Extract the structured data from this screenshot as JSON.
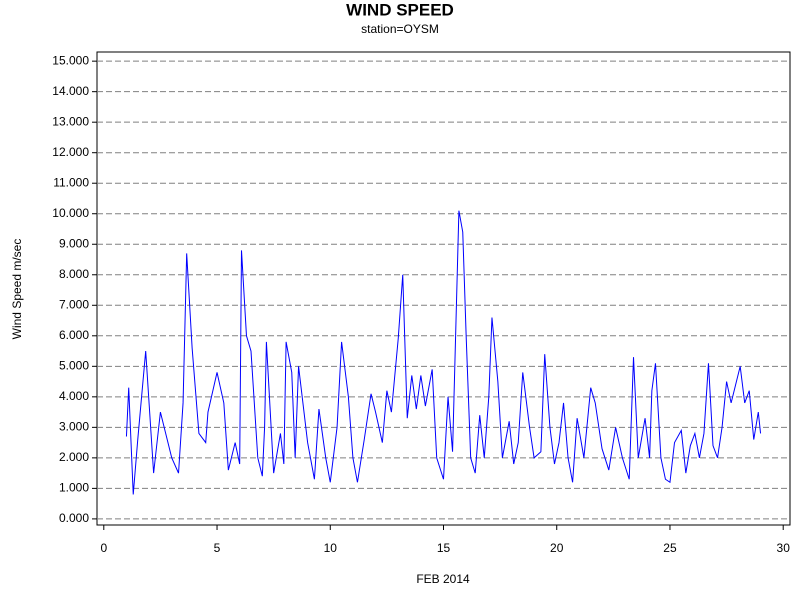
{
  "chart_data": {
    "type": "line",
    "title": "WIND SPEED",
    "subtitle": "station=OYSM",
    "x_label": "FEB 2014",
    "y_label": "Wind Speed m/sec",
    "color": "#0000ff",
    "grid": true,
    "xlim": [
      -0.3,
      30.3
    ],
    "ylim": [
      -0.2,
      15.3
    ],
    "xticks": [
      0,
      5,
      10,
      15,
      20,
      25,
      30
    ],
    "yticks": [
      {
        "value": 0,
        "label": "0.000"
      },
      {
        "value": 1,
        "label": "1.000"
      },
      {
        "value": 2,
        "label": "2.000"
      },
      {
        "value": 3,
        "label": "3.000"
      },
      {
        "value": 4,
        "label": "4.000"
      },
      {
        "value": 5,
        "label": "5.000"
      },
      {
        "value": 6,
        "label": "6.000"
      },
      {
        "value": 7,
        "label": "7.000"
      },
      {
        "value": 8,
        "label": "8.000"
      },
      {
        "value": 9,
        "label": "9.000"
      },
      {
        "value": 10,
        "label": "10.000"
      },
      {
        "value": 11,
        "label": "11.000"
      },
      {
        "value": 12,
        "label": "12.000"
      },
      {
        "value": 13,
        "label": "13.000"
      },
      {
        "value": 14,
        "label": "14.000"
      },
      {
        "value": 15,
        "label": "15.000"
      }
    ],
    "x": [
      1.0,
      1.1,
      1.3,
      1.5,
      1.85,
      2.2,
      2.5,
      3.0,
      3.3,
      3.5,
      3.66,
      3.9,
      4.2,
      4.5,
      4.6,
      5.0,
      5.3,
      5.5,
      5.8,
      6.0,
      6.08,
      6.3,
      6.5,
      6.8,
      7.0,
      7.1,
      7.18,
      7.5,
      7.8,
      7.95,
      8.05,
      8.3,
      8.45,
      8.6,
      9.0,
      9.3,
      9.5,
      9.8,
      10.0,
      10.3,
      10.5,
      10.8,
      11.0,
      11.2,
      11.5,
      11.8,
      12.0,
      12.3,
      12.5,
      12.7,
      13.0,
      13.2,
      13.4,
      13.6,
      13.8,
      14.0,
      14.2,
      14.5,
      14.7,
      15.0,
      15.2,
      15.4,
      15.68,
      15.85,
      16.0,
      16.2,
      16.4,
      16.6,
      16.8,
      17.0,
      17.14,
      17.4,
      17.6,
      17.9,
      18.1,
      18.3,
      18.5,
      18.8,
      19.0,
      19.3,
      19.47,
      19.7,
      19.9,
      20.1,
      20.3,
      20.5,
      20.7,
      20.9,
      21.2,
      21.5,
      21.7,
      22.0,
      22.3,
      22.6,
      22.9,
      23.2,
      23.39,
      23.6,
      23.9,
      24.1,
      24.2,
      24.36,
      24.6,
      24.8,
      25.0,
      25.2,
      25.5,
      25.7,
      25.9,
      26.1,
      26.3,
      26.5,
      26.7,
      26.9,
      27.1,
      27.3,
      27.5,
      27.7,
      27.9,
      28.1,
      28.3,
      28.5,
      28.7,
      28.9,
      29.0
    ],
    "values": [
      2.7,
      4.3,
      0.8,
      2.6,
      5.5,
      1.5,
      3.5,
      2.0,
      1.5,
      3.8,
      8.7,
      5.6,
      2.8,
      2.5,
      3.5,
      4.8,
      3.8,
      1.6,
      2.5,
      1.8,
      8.8,
      6.0,
      5.5,
      2.0,
      1.4,
      3.0,
      5.8,
      1.5,
      2.8,
      1.8,
      5.8,
      4.8,
      2.0,
      5.0,
      2.5,
      1.3,
      3.6,
      2.0,
      1.2,
      3.0,
      5.8,
      4.0,
      2.0,
      1.2,
      2.6,
      4.1,
      3.5,
      2.5,
      4.2,
      3.5,
      5.9,
      8.0,
      3.3,
      4.7,
      3.6,
      4.7,
      3.7,
      4.9,
      2.0,
      1.3,
      4.0,
      2.2,
      10.1,
      9.4,
      6.0,
      2.0,
      1.5,
      3.4,
      2.0,
      4.0,
      6.6,
      4.5,
      2.0,
      3.2,
      1.8,
      2.5,
      4.8,
      3.0,
      2.0,
      2.2,
      5.4,
      3.0,
      1.8,
      2.5,
      3.8,
      2.0,
      1.2,
      3.3,
      2.0,
      4.3,
      3.8,
      2.3,
      1.6,
      3.0,
      2.0,
      1.3,
      5.3,
      2.0,
      3.3,
      2.0,
      4.2,
      5.1,
      2.0,
      1.3,
      1.2,
      2.5,
      2.9,
      1.5,
      2.4,
      2.8,
      2.0,
      2.8,
      5.1,
      2.4,
      2.0,
      3.0,
      4.5,
      3.8,
      4.4,
      5.0,
      3.8,
      4.2,
      2.6,
      3.5,
      2.8
    ]
  }
}
